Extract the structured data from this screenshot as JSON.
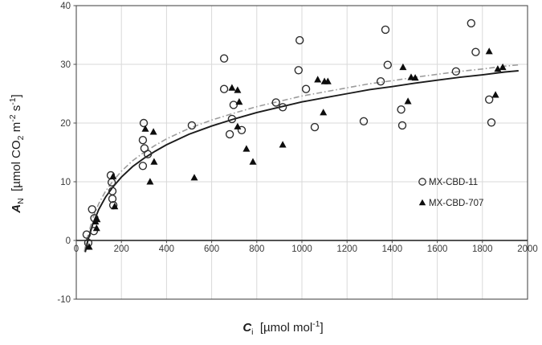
{
  "figure": {
    "background": "#ffffff",
    "border_color": "#4d4d4d",
    "grid_color": "#d9d9d9",
    "axis_line_color": "#1a1a1a",
    "tick_label_color": "#3a3a3a",
    "marker_outline_color": "#2e2e2e",
    "triangle_fill_color": "#0d0d0d"
  },
  "axis_titles": {
    "x_html": "<span class=\"var\">C</span><sub>i</sub>&nbsp;&nbsp;[µmol mol<sup>-1</sup>]",
    "y_html": "<span class=\"var\">A</span><sub>N</sub>&nbsp;&nbsp;[µmol CO<sub>2</sub> m<sup>-2</sup> s<sup>-1</sup>]"
  },
  "chart_data": {
    "type": "scatter",
    "xlabel": "Ci [umol mol-1]",
    "ylabel": "AN [umol CO2 m-2 s-1]",
    "xlim": [
      0,
      2000
    ],
    "ylim": [
      -10,
      40
    ],
    "x_ticks": [
      0,
      200,
      400,
      600,
      800,
      1000,
      1200,
      1400,
      1600,
      1800,
      2000
    ],
    "y_ticks": [
      -10,
      0,
      10,
      20,
      30,
      40
    ],
    "grid": true,
    "legend_position": "inside right",
    "series": [
      {
        "name": "MX-CBD-11",
        "marker": "circle",
        "points": [
          [
            46,
            1.0
          ],
          [
            53,
            -0.4
          ],
          [
            70,
            5.3
          ],
          [
            78,
            1.6
          ],
          [
            80,
            3.8
          ],
          [
            153,
            11.1
          ],
          [
            157,
            9.9
          ],
          [
            160,
            8.4
          ],
          [
            160,
            7.1
          ],
          [
            164,
            6.0
          ],
          [
            295,
            12.7
          ],
          [
            295,
            17.1
          ],
          [
            299,
            20.0
          ],
          [
            302,
            15.7
          ],
          [
            317,
            14.7
          ],
          [
            512,
            19.6
          ],
          [
            655,
            31.0
          ],
          [
            655,
            25.8
          ],
          [
            680,
            18.1
          ],
          [
            690,
            20.7
          ],
          [
            697,
            23.1
          ],
          [
            733,
            18.8
          ],
          [
            885,
            23.5
          ],
          [
            915,
            22.7
          ],
          [
            985,
            29.0
          ],
          [
            990,
            34.1
          ],
          [
            1018,
            25.8
          ],
          [
            1057,
            19.3
          ],
          [
            1274,
            20.3
          ],
          [
            1349,
            27.1
          ],
          [
            1370,
            35.9
          ],
          [
            1380,
            29.9
          ],
          [
            1440,
            22.3
          ],
          [
            1445,
            19.6
          ],
          [
            1683,
            28.8
          ],
          [
            1750,
            37.0
          ],
          [
            1770,
            32.1
          ],
          [
            1830,
            24.0
          ],
          [
            1840,
            20.1
          ]
        ]
      },
      {
        "name": "MX-CBD-707",
        "marker": "triangle",
        "points": [
          [
            57,
            -1.1
          ],
          [
            85,
            3.2
          ],
          [
            90,
            2.1
          ],
          [
            92,
            3.6
          ],
          [
            163,
            10.9
          ],
          [
            170,
            5.8
          ],
          [
            306,
            19.0
          ],
          [
            327,
            10.0
          ],
          [
            342,
            18.5
          ],
          [
            345,
            13.4
          ],
          [
            523,
            10.7
          ],
          [
            690,
            26.0
          ],
          [
            715,
            25.6
          ],
          [
            715,
            19.4
          ],
          [
            722,
            23.6
          ],
          [
            754,
            15.6
          ],
          [
            783,
            13.4
          ],
          [
            915,
            16.3
          ],
          [
            1070,
            27.4
          ],
          [
            1095,
            21.8
          ],
          [
            1100,
            27.1
          ],
          [
            1115,
            27.1
          ],
          [
            1448,
            29.5
          ],
          [
            1470,
            23.7
          ],
          [
            1484,
            27.8
          ],
          [
            1502,
            27.7
          ],
          [
            1830,
            32.2
          ],
          [
            1858,
            24.8
          ],
          [
            1868,
            29.2
          ],
          [
            1890,
            29.5
          ]
        ]
      }
    ],
    "fit_curves": [
      {
        "name": "fit-dash-dot",
        "style": "dash-dot",
        "color": "#9c9c9c",
        "points": [
          [
            36,
            -1.9
          ],
          [
            46,
            0.1
          ],
          [
            75,
            4.0
          ],
          [
            100,
            6.3
          ],
          [
            130,
            8.4
          ],
          [
            160,
            10.0
          ],
          [
            200,
            11.8
          ],
          [
            250,
            13.6
          ],
          [
            300,
            15.0
          ],
          [
            350,
            16.2
          ],
          [
            400,
            17.3
          ],
          [
            500,
            19.1
          ],
          [
            600,
            20.5
          ],
          [
            700,
            21.7
          ],
          [
            800,
            22.8
          ],
          [
            900,
            23.7
          ],
          [
            1000,
            24.6
          ],
          [
            1100,
            25.3
          ],
          [
            1200,
            26.0
          ],
          [
            1300,
            26.7
          ],
          [
            1400,
            27.2
          ],
          [
            1500,
            27.8
          ],
          [
            1600,
            28.3
          ],
          [
            1700,
            28.8
          ],
          [
            1800,
            29.2
          ],
          [
            1900,
            29.7
          ],
          [
            1960,
            29.9
          ]
        ]
      },
      {
        "name": "fit-solid",
        "style": "solid",
        "color": "#1c1c1c",
        "points": [
          [
            40,
            -2.0
          ],
          [
            52,
            0.1
          ],
          [
            75,
            3.0
          ],
          [
            100,
            5.3
          ],
          [
            130,
            7.4
          ],
          [
            160,
            9.0
          ],
          [
            200,
            10.8
          ],
          [
            250,
            12.6
          ],
          [
            300,
            14.0
          ],
          [
            350,
            15.2
          ],
          [
            400,
            16.3
          ],
          [
            500,
            18.1
          ],
          [
            600,
            19.5
          ],
          [
            700,
            20.7
          ],
          [
            800,
            21.8
          ],
          [
            900,
            22.7
          ],
          [
            1000,
            23.6
          ],
          [
            1100,
            24.3
          ],
          [
            1200,
            25.0
          ],
          [
            1300,
            25.7
          ],
          [
            1400,
            26.2
          ],
          [
            1500,
            26.8
          ],
          [
            1600,
            27.3
          ],
          [
            1700,
            27.8
          ],
          [
            1800,
            28.2
          ],
          [
            1900,
            28.7
          ],
          [
            1960,
            28.9
          ]
        ]
      }
    ]
  }
}
